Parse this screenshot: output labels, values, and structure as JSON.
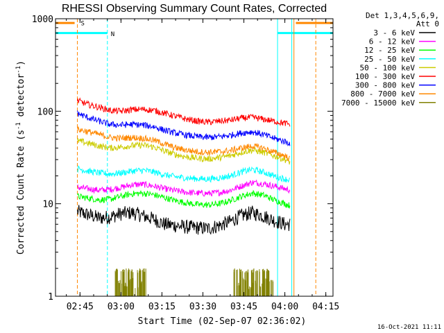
{
  "chart_data": {
    "type": "line",
    "title": "RHESSI Observing Summary Count Rates, Corrected",
    "xlabel": "Start Time (02-Sep-07 02:36:02)",
    "ylabel_main": "Corrected Count Rate (s",
    "ylabel_sup1": "-1",
    "ylabel_mid": " detector",
    "ylabel_sup2": "-1",
    "ylabel_end": ")",
    "x_unit": "minutes since 02:36:02",
    "xlim": [
      0,
      101.6
    ],
    "ylim": [
      1,
      1000
    ],
    "yscale": "log",
    "x_ticks": [
      {
        "value": 8.97,
        "label": "02:45"
      },
      {
        "value": 23.97,
        "label": "03:00"
      },
      {
        "value": 38.97,
        "label": "03:15"
      },
      {
        "value": 53.97,
        "label": "03:30"
      },
      {
        "value": 68.97,
        "label": "03:45"
      },
      {
        "value": 83.97,
        "label": "04:00"
      },
      {
        "value": 98.97,
        "label": "04:15"
      }
    ],
    "y_ticks": [
      {
        "value": 1,
        "label": "1"
      },
      {
        "value": 10,
        "label": "10"
      },
      {
        "value": 100,
        "label": "100"
      },
      {
        "value": 1000,
        "label": "1000"
      }
    ],
    "legend_header": [
      "Det 1,3,4,5,6,9,",
      "Att 0"
    ],
    "legend_placement": "right",
    "series": [
      {
        "name": "3 - 6 keV",
        "color": "#000000",
        "x": [
          8,
          12,
          16,
          20,
          24,
          28,
          32,
          36,
          40,
          44,
          48,
          52,
          56,
          60,
          64,
          68,
          72,
          76,
          80,
          84,
          86
        ],
        "y": [
          8.2,
          7.6,
          7.0,
          7.2,
          7.8,
          8.0,
          7.4,
          6.8,
          6.0,
          5.8,
          5.6,
          5.5,
          5.4,
          5.8,
          6.4,
          7.4,
          8.0,
          7.4,
          6.6,
          6.0,
          6.0
        ]
      },
      {
        "name": "6 - 12 keV",
        "color": "#ff00ff",
        "x": [
          8,
          12,
          16,
          20,
          24,
          28,
          32,
          36,
          40,
          44,
          48,
          52,
          56,
          60,
          64,
          68,
          72,
          76,
          80,
          84,
          86
        ],
        "y": [
          15.0,
          14.5,
          14.0,
          14.3,
          15.0,
          16.0,
          16.2,
          15.5,
          14.5,
          13.8,
          13.3,
          13.0,
          12.9,
          13.2,
          14.0,
          15.5,
          17.0,
          16.5,
          15.5,
          14.5,
          14.0
        ]
      },
      {
        "name": "12 - 25 keV",
        "color": "#00ff00",
        "x": [
          8,
          12,
          16,
          20,
          24,
          28,
          32,
          36,
          40,
          44,
          48,
          52,
          56,
          60,
          64,
          68,
          72,
          76,
          80,
          84,
          86
        ],
        "y": [
          12.0,
          11.5,
          11.0,
          11.2,
          12.0,
          12.8,
          13.0,
          12.5,
          11.6,
          10.8,
          10.2,
          9.8,
          9.7,
          10.0,
          10.8,
          12.0,
          13.0,
          12.4,
          11.0,
          10.0,
          9.5
        ]
      },
      {
        "name": "25 - 50 keV",
        "color": "#00ffff",
        "x": [
          8,
          12,
          16,
          20,
          24,
          28,
          32,
          36,
          40,
          44,
          48,
          52,
          56,
          60,
          64,
          68,
          72,
          76,
          80,
          84,
          86
        ],
        "y": [
          24.0,
          22.5,
          21.5,
          21.0,
          21.5,
          22.5,
          23.0,
          22.0,
          20.5,
          19.5,
          19.0,
          18.6,
          18.5,
          19.0,
          20.0,
          22.0,
          23.5,
          22.0,
          20.0,
          18.5,
          18.0
        ]
      },
      {
        "name": "50 - 100 keV",
        "color": "#cccc00",
        "x": [
          8,
          12,
          16,
          20,
          24,
          28,
          32,
          36,
          40,
          44,
          48,
          52,
          56,
          60,
          64,
          68,
          72,
          76,
          80,
          84,
          86
        ],
        "y": [
          48.0,
          45.0,
          42.0,
          40.0,
          41.0,
          42.5,
          43.0,
          41.0,
          37.0,
          34.0,
          32.0,
          31.0,
          30.5,
          31.5,
          33.0,
          36.0,
          38.0,
          36.0,
          33.0,
          30.0,
          28.0
        ]
      },
      {
        "name": "100 - 300 keV",
        "color": "#ff0000",
        "x": [
          8,
          12,
          16,
          20,
          24,
          28,
          32,
          36,
          40,
          44,
          48,
          52,
          56,
          60,
          64,
          68,
          72,
          76,
          80,
          84,
          86
        ],
        "y": [
          130.0,
          118.0,
          110.0,
          102.0,
          100.0,
          104.0,
          105.0,
          102.0,
          95.0,
          88.0,
          82.0,
          78.0,
          76.0,
          78.0,
          80.0,
          84.0,
          86.0,
          82.0,
          78.0,
          74.0,
          72.0
        ]
      },
      {
        "name": "300 - 800 keV",
        "color": "#0000ff",
        "x": [
          8,
          12,
          16,
          20,
          24,
          28,
          32,
          36,
          40,
          44,
          48,
          52,
          56,
          60,
          64,
          68,
          72,
          76,
          80,
          84,
          86
        ],
        "y": [
          95.0,
          85.0,
          78.0,
          72.0,
          71.0,
          72.0,
          71.0,
          68.0,
          62.0,
          58.0,
          55.0,
          53.0,
          52.0,
          53.0,
          55.0,
          58.0,
          60.0,
          56.0,
          51.0,
          47.0,
          45.0
        ]
      },
      {
        "name": "800 - 7000 keV",
        "color": "#ff8800",
        "x": [
          8,
          12,
          16,
          20,
          24,
          28,
          32,
          36,
          40,
          44,
          48,
          52,
          56,
          60,
          64,
          68,
          72,
          76,
          80,
          84,
          86
        ],
        "y": [
          64.0,
          60.0,
          56.0,
          52.0,
          51.0,
          52.0,
          51.0,
          48.5,
          44.0,
          40.0,
          38.0,
          36.5,
          36.0,
          36.5,
          37.5,
          40.0,
          42.0,
          40.0,
          36.0,
          33.0,
          30.0
        ]
      },
      {
        "name": "7000 - 15000 keV",
        "color": "#808000",
        "x": [
          22.5,
          23.5,
          24.5,
          25.5,
          26.5,
          27.5,
          28.5,
          29.5,
          30.5,
          31.5,
          32.5,
          66,
          67,
          68,
          69,
          70,
          71,
          72,
          73,
          74,
          75,
          76,
          77,
          78,
          79
        ],
        "y": [
          2,
          1.5,
          2,
          1.4,
          2,
          1.6,
          2,
          1.3,
          2,
          1.5,
          2,
          2,
          1.4,
          2,
          1.6,
          2,
          1.3,
          2,
          1.5,
          2,
          1.4,
          2,
          1.6,
          2,
          1.5
        ]
      }
    ],
    "annotations": {
      "saa_label": "S",
      "night_label": "N",
      "saa_color": "#ff8800",
      "night_color": "#00ffff",
      "saa_x": [
        8.0,
        87.3,
        95.3
      ],
      "night_x": [
        0.0,
        19.0,
        81.3,
        86.5,
        101.6
      ],
      "saa_bars": [
        [
          0,
          7.0
        ],
        [
          88.0,
          101.6
        ]
      ],
      "night_bars": [
        [
          0,
          19.0
        ],
        [
          81.3,
          101.6
        ]
      ]
    },
    "timestamp": "16-Oct-2021 11:11"
  }
}
